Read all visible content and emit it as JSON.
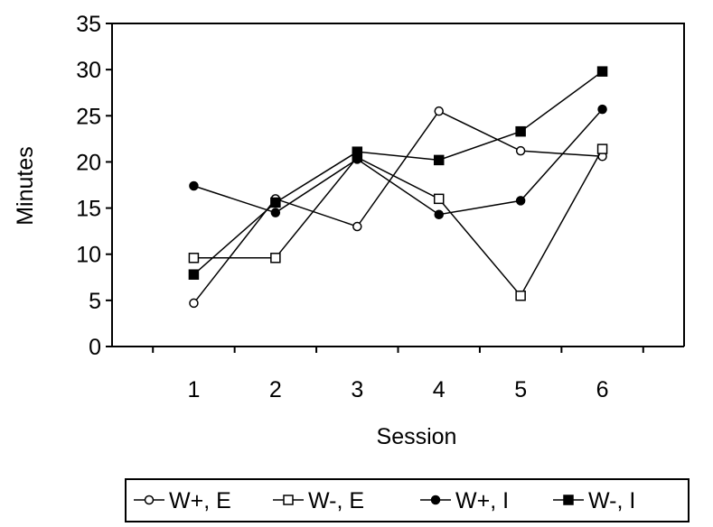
{
  "chart_data": {
    "type": "line",
    "title": "",
    "xlabel": "Session",
    "ylabel": "Minutes",
    "categories": [
      "1",
      "2",
      "3",
      "4",
      "5",
      "6"
    ],
    "ylim": [
      0,
      35
    ],
    "yticks": [
      "0",
      "5",
      "10",
      "15",
      "20",
      "25",
      "30",
      "35"
    ],
    "grid": false,
    "legend_position": "bottom",
    "series": [
      {
        "name": "W+, E",
        "marker": "open-circle",
        "values": [
          4.7,
          16.0,
          13.0,
          25.5,
          21.2,
          20.6
        ]
      },
      {
        "name": "W-, E",
        "marker": "open-square",
        "values": [
          9.6,
          9.6,
          20.5,
          16.0,
          5.5,
          21.4
        ]
      },
      {
        "name": "W+, I",
        "marker": "filled-circle",
        "values": [
          17.4,
          14.5,
          20.3,
          14.3,
          15.8,
          25.7
        ]
      },
      {
        "name": "W-, I",
        "marker": "filled-square",
        "values": [
          7.8,
          15.6,
          21.1,
          20.2,
          23.3,
          29.8
        ]
      }
    ]
  }
}
